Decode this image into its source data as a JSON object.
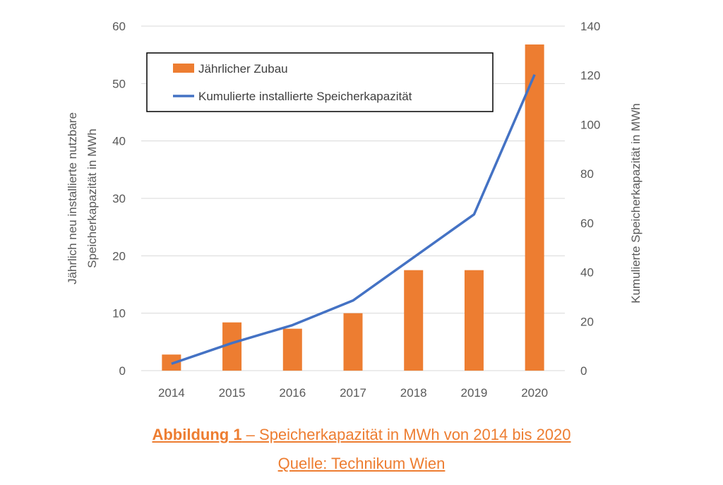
{
  "chart_data": {
    "type": "bar",
    "categories": [
      "2014",
      "2015",
      "2016",
      "2017",
      "2018",
      "2019",
      "2020"
    ],
    "series": [
      {
        "name": "Jährlicher Zubau",
        "type": "bar",
        "axis": "left",
        "color": "#ed7d31",
        "values": [
          2.8,
          8.4,
          7.3,
          10.0,
          17.5,
          17.5,
          56.8
        ]
      },
      {
        "name": "Kumulierte installierte Speicherkapazität",
        "type": "line",
        "axis": "right",
        "color": "#4472c4",
        "values": [
          2.8,
          11.2,
          18.5,
          28.5,
          46.0,
          63.5,
          120.3
        ]
      }
    ],
    "y_left": {
      "label_line1": "Jährlich neu installierte nutzbare",
      "label_line2": "Speicherkapazität in MWh",
      "ylim": [
        0,
        60
      ],
      "ticks": [
        "0",
        "10",
        "20",
        "30",
        "40",
        "50",
        "60"
      ]
    },
    "y_right": {
      "label": "Kumulierte Speicherkapazität in MWh",
      "ylim": [
        0,
        140
      ],
      "ticks": [
        "0",
        "20",
        "40",
        "60",
        "80",
        "100",
        "120",
        "140"
      ]
    },
    "grid": true,
    "legend_position": "top-left"
  },
  "caption": {
    "bold": "Abbildung 1",
    "rest": " – Speicherkapazität in MWh von 2014 bis 2020",
    "source": "Quelle: Technikum Wien"
  }
}
